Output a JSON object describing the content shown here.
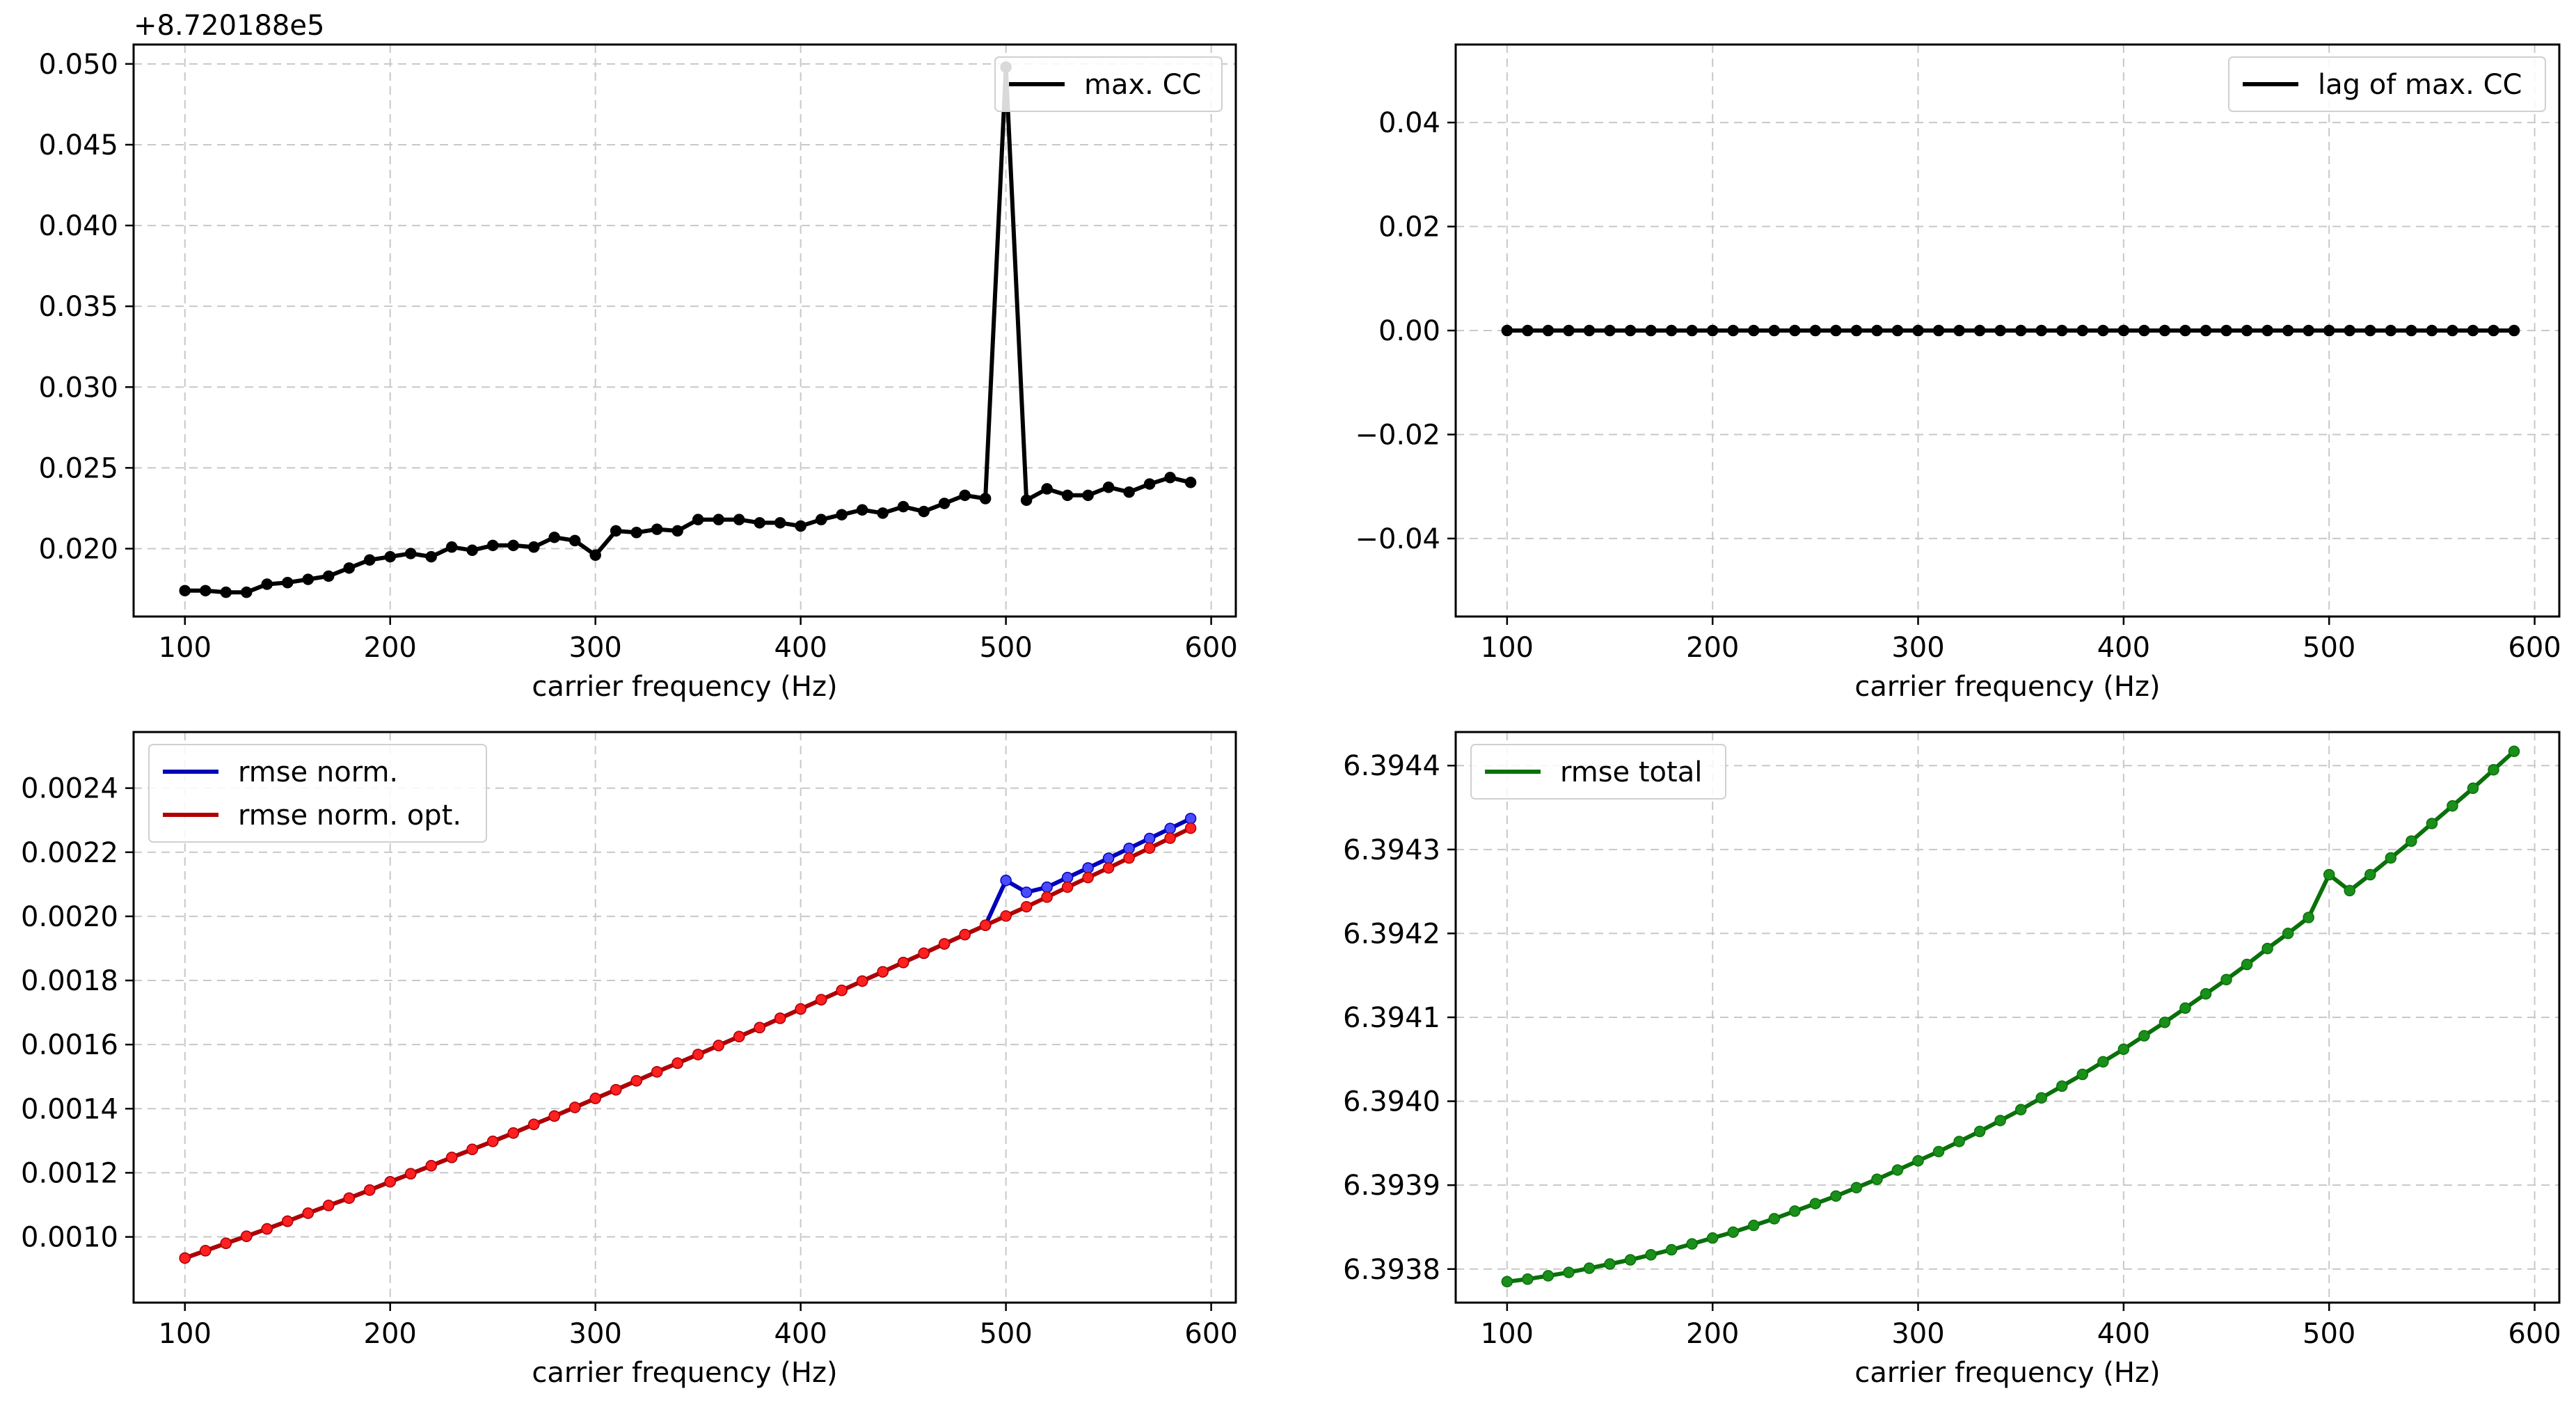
{
  "chart_data": [
    {
      "type": "line",
      "title": "",
      "xlabel": "carrier frequency (Hz)",
      "ylabel": "",
      "offset_label": "+8.720188e5",
      "xlim": [
        75,
        612
      ],
      "ylim": [
        0.0158,
        0.0512
      ],
      "xticks": [
        100,
        200,
        300,
        400,
        500,
        600
      ],
      "yticks": [
        0.02,
        0.025,
        0.03,
        0.035,
        0.04,
        0.045,
        0.05
      ],
      "ytick_labels": [
        "0.020",
        "0.025",
        "0.030",
        "0.035",
        "0.040",
        "0.045",
        "0.050"
      ],
      "grid": true,
      "legend_position": "upper right",
      "x": [
        100,
        110,
        120,
        130,
        140,
        150,
        160,
        170,
        180,
        190,
        200,
        210,
        220,
        230,
        240,
        250,
        260,
        270,
        280,
        290,
        300,
        310,
        320,
        330,
        340,
        350,
        360,
        370,
        380,
        390,
        400,
        410,
        420,
        430,
        440,
        450,
        460,
        470,
        480,
        490,
        500,
        510,
        520,
        530,
        540,
        550,
        560,
        570,
        580,
        590
      ],
      "series": [
        {
          "name": "max. CC",
          "color": "#000000",
          "values": [
            0.0174,
            0.0174,
            0.0173,
            0.0173,
            0.0178,
            0.0179,
            0.0181,
            0.0183,
            0.0188,
            0.0193,
            0.0195,
            0.0197,
            0.0195,
            0.0201,
            0.0199,
            0.0202,
            0.0202,
            0.0201,
            0.0207,
            0.0205,
            0.0196,
            0.0211,
            0.021,
            0.0212,
            0.0211,
            0.0218,
            0.0218,
            0.0218,
            0.0216,
            0.0216,
            0.0214,
            0.0218,
            0.0221,
            0.0224,
            0.0222,
            0.0226,
            0.0223,
            0.0228,
            0.0233,
            0.0231,
            0.0498,
            0.023,
            0.0237,
            0.0233,
            0.0233,
            0.0238,
            0.0235,
            0.024,
            0.0244,
            0.0241
          ]
        }
      ]
    },
    {
      "type": "line",
      "title": "",
      "xlabel": "carrier frequency (Hz)",
      "ylabel": "",
      "xlim": [
        75,
        612
      ],
      "ylim": [
        -0.055,
        0.055
      ],
      "xticks": [
        100,
        200,
        300,
        400,
        500,
        600
      ],
      "yticks": [
        -0.04,
        -0.02,
        0.0,
        0.02,
        0.04
      ],
      "ytick_labels": [
        "−0.04",
        "−0.02",
        "0.00",
        "0.02",
        "0.04"
      ],
      "grid": true,
      "legend_position": "upper right",
      "x": [
        100,
        110,
        120,
        130,
        140,
        150,
        160,
        170,
        180,
        190,
        200,
        210,
        220,
        230,
        240,
        250,
        260,
        270,
        280,
        290,
        300,
        310,
        320,
        330,
        340,
        350,
        360,
        370,
        380,
        390,
        400,
        410,
        420,
        430,
        440,
        450,
        460,
        470,
        480,
        490,
        500,
        510,
        520,
        530,
        540,
        550,
        560,
        570,
        580,
        590
      ],
      "series": [
        {
          "name": "lag of max. CC",
          "color": "#000000",
          "values": [
            0,
            0,
            0,
            0,
            0,
            0,
            0,
            0,
            0,
            0,
            0,
            0,
            0,
            0,
            0,
            0,
            0,
            0,
            0,
            0,
            0,
            0,
            0,
            0,
            0,
            0,
            0,
            0,
            0,
            0,
            0,
            0,
            0,
            0,
            0,
            0,
            0,
            0,
            0,
            0,
            0,
            0,
            0,
            0,
            0,
            0,
            0,
            0,
            0,
            0
          ]
        }
      ]
    },
    {
      "type": "line",
      "title": "",
      "xlabel": "carrier frequency (Hz)",
      "ylabel": "",
      "xlim": [
        75,
        612
      ],
      "ylim": [
        0.000795,
        0.002575
      ],
      "xticks": [
        100,
        200,
        300,
        400,
        500,
        600
      ],
      "yticks": [
        0.001,
        0.0012,
        0.0014,
        0.0016,
        0.0018,
        0.002,
        0.0022,
        0.0024
      ],
      "ytick_labels": [
        "0.0010",
        "0.0012",
        "0.0014",
        "0.0016",
        "0.0018",
        "0.0020",
        "0.0022",
        "0.0024"
      ],
      "grid": true,
      "legend_position": "upper left",
      "x": [
        100,
        110,
        120,
        130,
        140,
        150,
        160,
        170,
        180,
        190,
        200,
        210,
        220,
        230,
        240,
        250,
        260,
        270,
        280,
        290,
        300,
        310,
        320,
        330,
        340,
        350,
        360,
        370,
        380,
        390,
        400,
        410,
        420,
        430,
        440,
        450,
        460,
        470,
        480,
        490,
        500,
        510,
        520,
        530,
        540,
        550,
        560,
        570,
        580,
        590
      ],
      "series": [
        {
          "name": "rmse norm.",
          "color": "#0000b8",
          "marker_color": "#4a4aff",
          "values": [
            0.000934,
            0.000957,
            0.00098,
            0.001002,
            0.001025,
            0.001049,
            0.001074,
            0.001098,
            0.001121,
            0.001146,
            0.001172,
            0.001197,
            0.001222,
            0.001248,
            0.001273,
            0.001298,
            0.001324,
            0.001351,
            0.001377,
            0.001404,
            0.001432,
            0.001459,
            0.001487,
            0.001515,
            0.001542,
            0.001569,
            0.001597,
            0.001625,
            0.001653,
            0.001682,
            0.001711,
            0.00174,
            0.001769,
            0.001798,
            0.001827,
            0.001856,
            0.001885,
            0.001914,
            0.001943,
            0.001972,
            0.002112,
            0.002075,
            0.002091,
            0.002121,
            0.002151,
            0.002181,
            0.002212,
            0.002243,
            0.002274,
            0.002305
          ]
        },
        {
          "name": "rmse norm. opt.",
          "color": "#b00000",
          "marker_color": "#ff2020",
          "values": [
            0.000934,
            0.000957,
            0.00098,
            0.001002,
            0.001025,
            0.001049,
            0.001074,
            0.001098,
            0.001121,
            0.001146,
            0.001172,
            0.001197,
            0.001222,
            0.001248,
            0.001273,
            0.001298,
            0.001324,
            0.001351,
            0.001377,
            0.001404,
            0.001432,
            0.001459,
            0.001487,
            0.001515,
            0.001542,
            0.001569,
            0.001597,
            0.001625,
            0.001653,
            0.001682,
            0.001711,
            0.00174,
            0.001769,
            0.001798,
            0.001827,
            0.001856,
            0.001885,
            0.001914,
            0.001943,
            0.001972,
            0.002001,
            0.00203,
            0.00206,
            0.002091,
            0.002121,
            0.002151,
            0.002182,
            0.002213,
            0.002244,
            0.002275
          ]
        }
      ]
    },
    {
      "type": "line",
      "title": "",
      "xlabel": "carrier frequency (Hz)",
      "ylabel": "",
      "xlim": [
        75,
        612
      ],
      "ylim": [
        6.39376,
        6.39444
      ],
      "xticks": [
        100,
        200,
        300,
        400,
        500,
        600
      ],
      "yticks": [
        6.3938,
        6.3939,
        6.394,
        6.3941,
        6.3942,
        6.3943,
        6.3944
      ],
      "ytick_labels": [
        "6.3938",
        "6.3939",
        "6.3940",
        "6.3941",
        "6.3942",
        "6.3943",
        "6.3944"
      ],
      "grid": true,
      "legend_position": "upper left",
      "x": [
        100,
        110,
        120,
        130,
        140,
        150,
        160,
        170,
        180,
        190,
        200,
        210,
        220,
        230,
        240,
        250,
        260,
        270,
        280,
        290,
        300,
        310,
        320,
        330,
        340,
        350,
        360,
        370,
        380,
        390,
        400,
        410,
        420,
        430,
        440,
        450,
        460,
        470,
        480,
        490,
        500,
        510,
        520,
        530,
        540,
        550,
        560,
        570,
        580,
        590
      ],
      "series": [
        {
          "name": "rmse total",
          "color": "#0a700a",
          "marker_color": "#1a8f1a",
          "values": [
            6.393785,
            6.393788,
            6.393792,
            6.393796,
            6.393801,
            6.393806,
            6.393811,
            6.393817,
            6.393823,
            6.39383,
            6.393837,
            6.393844,
            6.393852,
            6.39386,
            6.393869,
            6.393878,
            6.393887,
            6.393897,
            6.393907,
            6.393918,
            6.393929,
            6.39394,
            6.393952,
            6.393964,
            6.393977,
            6.39399,
            6.394004,
            6.394018,
            6.394032,
            6.394047,
            6.394062,
            6.394078,
            6.394094,
            6.394111,
            6.394128,
            6.394145,
            6.394163,
            6.394182,
            6.3942,
            6.394219,
            6.39427,
            6.394251,
            6.39427,
            6.39429,
            6.39431,
            6.394331,
            6.394352,
            6.394373,
            6.394395,
            6.394417
          ]
        }
      ]
    }
  ]
}
